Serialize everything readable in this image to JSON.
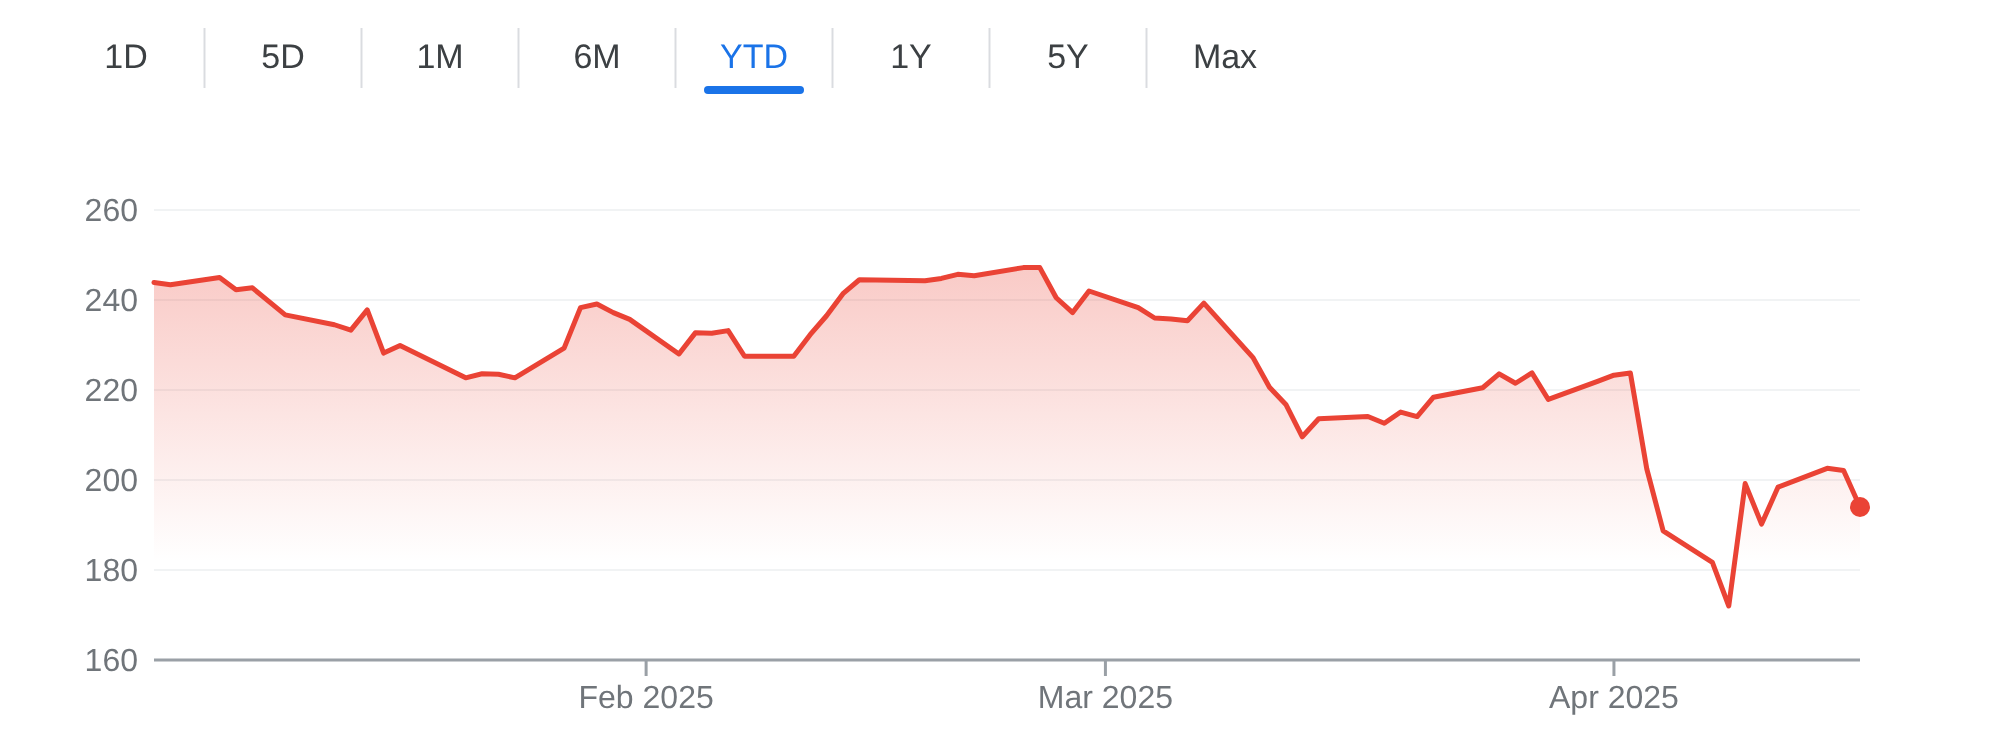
{
  "chart_data": {
    "type": "area",
    "x": [
      "2025-01-02",
      "2025-01-03",
      "2025-01-06",
      "2025-01-07",
      "2025-01-08",
      "2025-01-10",
      "2025-01-13",
      "2025-01-14",
      "2025-01-15",
      "2025-01-16",
      "2025-01-17",
      "2025-01-21",
      "2025-01-22",
      "2025-01-23",
      "2025-01-24",
      "2025-01-27",
      "2025-01-28",
      "2025-01-29",
      "2025-01-30",
      "2025-01-31",
      "2025-02-03",
      "2025-02-04",
      "2025-02-05",
      "2025-02-06",
      "2025-02-07",
      "2025-02-10",
      "2025-02-11",
      "2025-02-12",
      "2025-02-13",
      "2025-02-14",
      "2025-02-18",
      "2025-02-19",
      "2025-02-20",
      "2025-02-21",
      "2025-02-24",
      "2025-02-25",
      "2025-02-26",
      "2025-02-27",
      "2025-02-28",
      "2025-03-03",
      "2025-03-04",
      "2025-03-05",
      "2025-03-06",
      "2025-03-07",
      "2025-03-10",
      "2025-03-11",
      "2025-03-12",
      "2025-03-13",
      "2025-03-14",
      "2025-03-17",
      "2025-03-18",
      "2025-03-19",
      "2025-03-20",
      "2025-03-21",
      "2025-03-24",
      "2025-03-25",
      "2025-03-26",
      "2025-03-27",
      "2025-03-28",
      "2025-03-31",
      "2025-04-01",
      "2025-04-02",
      "2025-04-03",
      "2025-04-04",
      "2025-04-07",
      "2025-04-08",
      "2025-04-09",
      "2025-04-10",
      "2025-04-11",
      "2025-04-14",
      "2025-04-15",
      "2025-04-16"
    ],
    "series": [
      {
        "color": "#ea4335",
        "values": [
          243.9,
          243.4,
          245.0,
          242.3,
          242.7,
          236.7,
          234.5,
          233.3,
          237.8,
          228.2,
          229.9,
          222.7,
          223.6,
          223.5,
          222.7,
          229.3,
          238.3,
          239.1,
          237.2,
          235.7,
          228.0,
          232.7,
          232.6,
          233.2,
          227.5,
          227.5,
          232.3,
          236.5,
          241.4,
          244.5,
          244.3,
          244.8,
          245.7,
          245.4,
          247.2,
          247.2,
          240.5,
          237.2,
          242.0,
          238.3,
          236.0,
          235.8,
          235.4,
          239.3,
          227.2,
          220.6,
          216.8,
          209.6,
          213.6,
          214.1,
          212.6,
          215.1,
          214.1,
          218.4,
          220.5,
          223.6,
          221.5,
          223.8,
          217.9,
          221.9,
          223.3,
          223.8,
          202.5,
          188.7,
          181.7,
          172.0,
          199.2,
          190.2,
          198.4,
          202.6,
          202.1,
          194.0
        ]
      }
    ],
    "xlim": [
      "2025-01-02",
      "2025-04-16"
    ],
    "xticks": [
      {
        "value": "2025-02-01",
        "label": "Feb 2025"
      },
      {
        "value": "2025-03-01",
        "label": "Mar 2025"
      },
      {
        "value": "2025-04-01",
        "label": "Apr 2025"
      }
    ],
    "ylim": [
      160,
      260
    ],
    "yticks": [
      160,
      180,
      200,
      220,
      240,
      260
    ],
    "grid": "y",
    "annotations": [
      "1D",
      "5D",
      "1M",
      "6M",
      "YTD",
      "1Y",
      "5Y",
      "Max"
    ]
  }
}
